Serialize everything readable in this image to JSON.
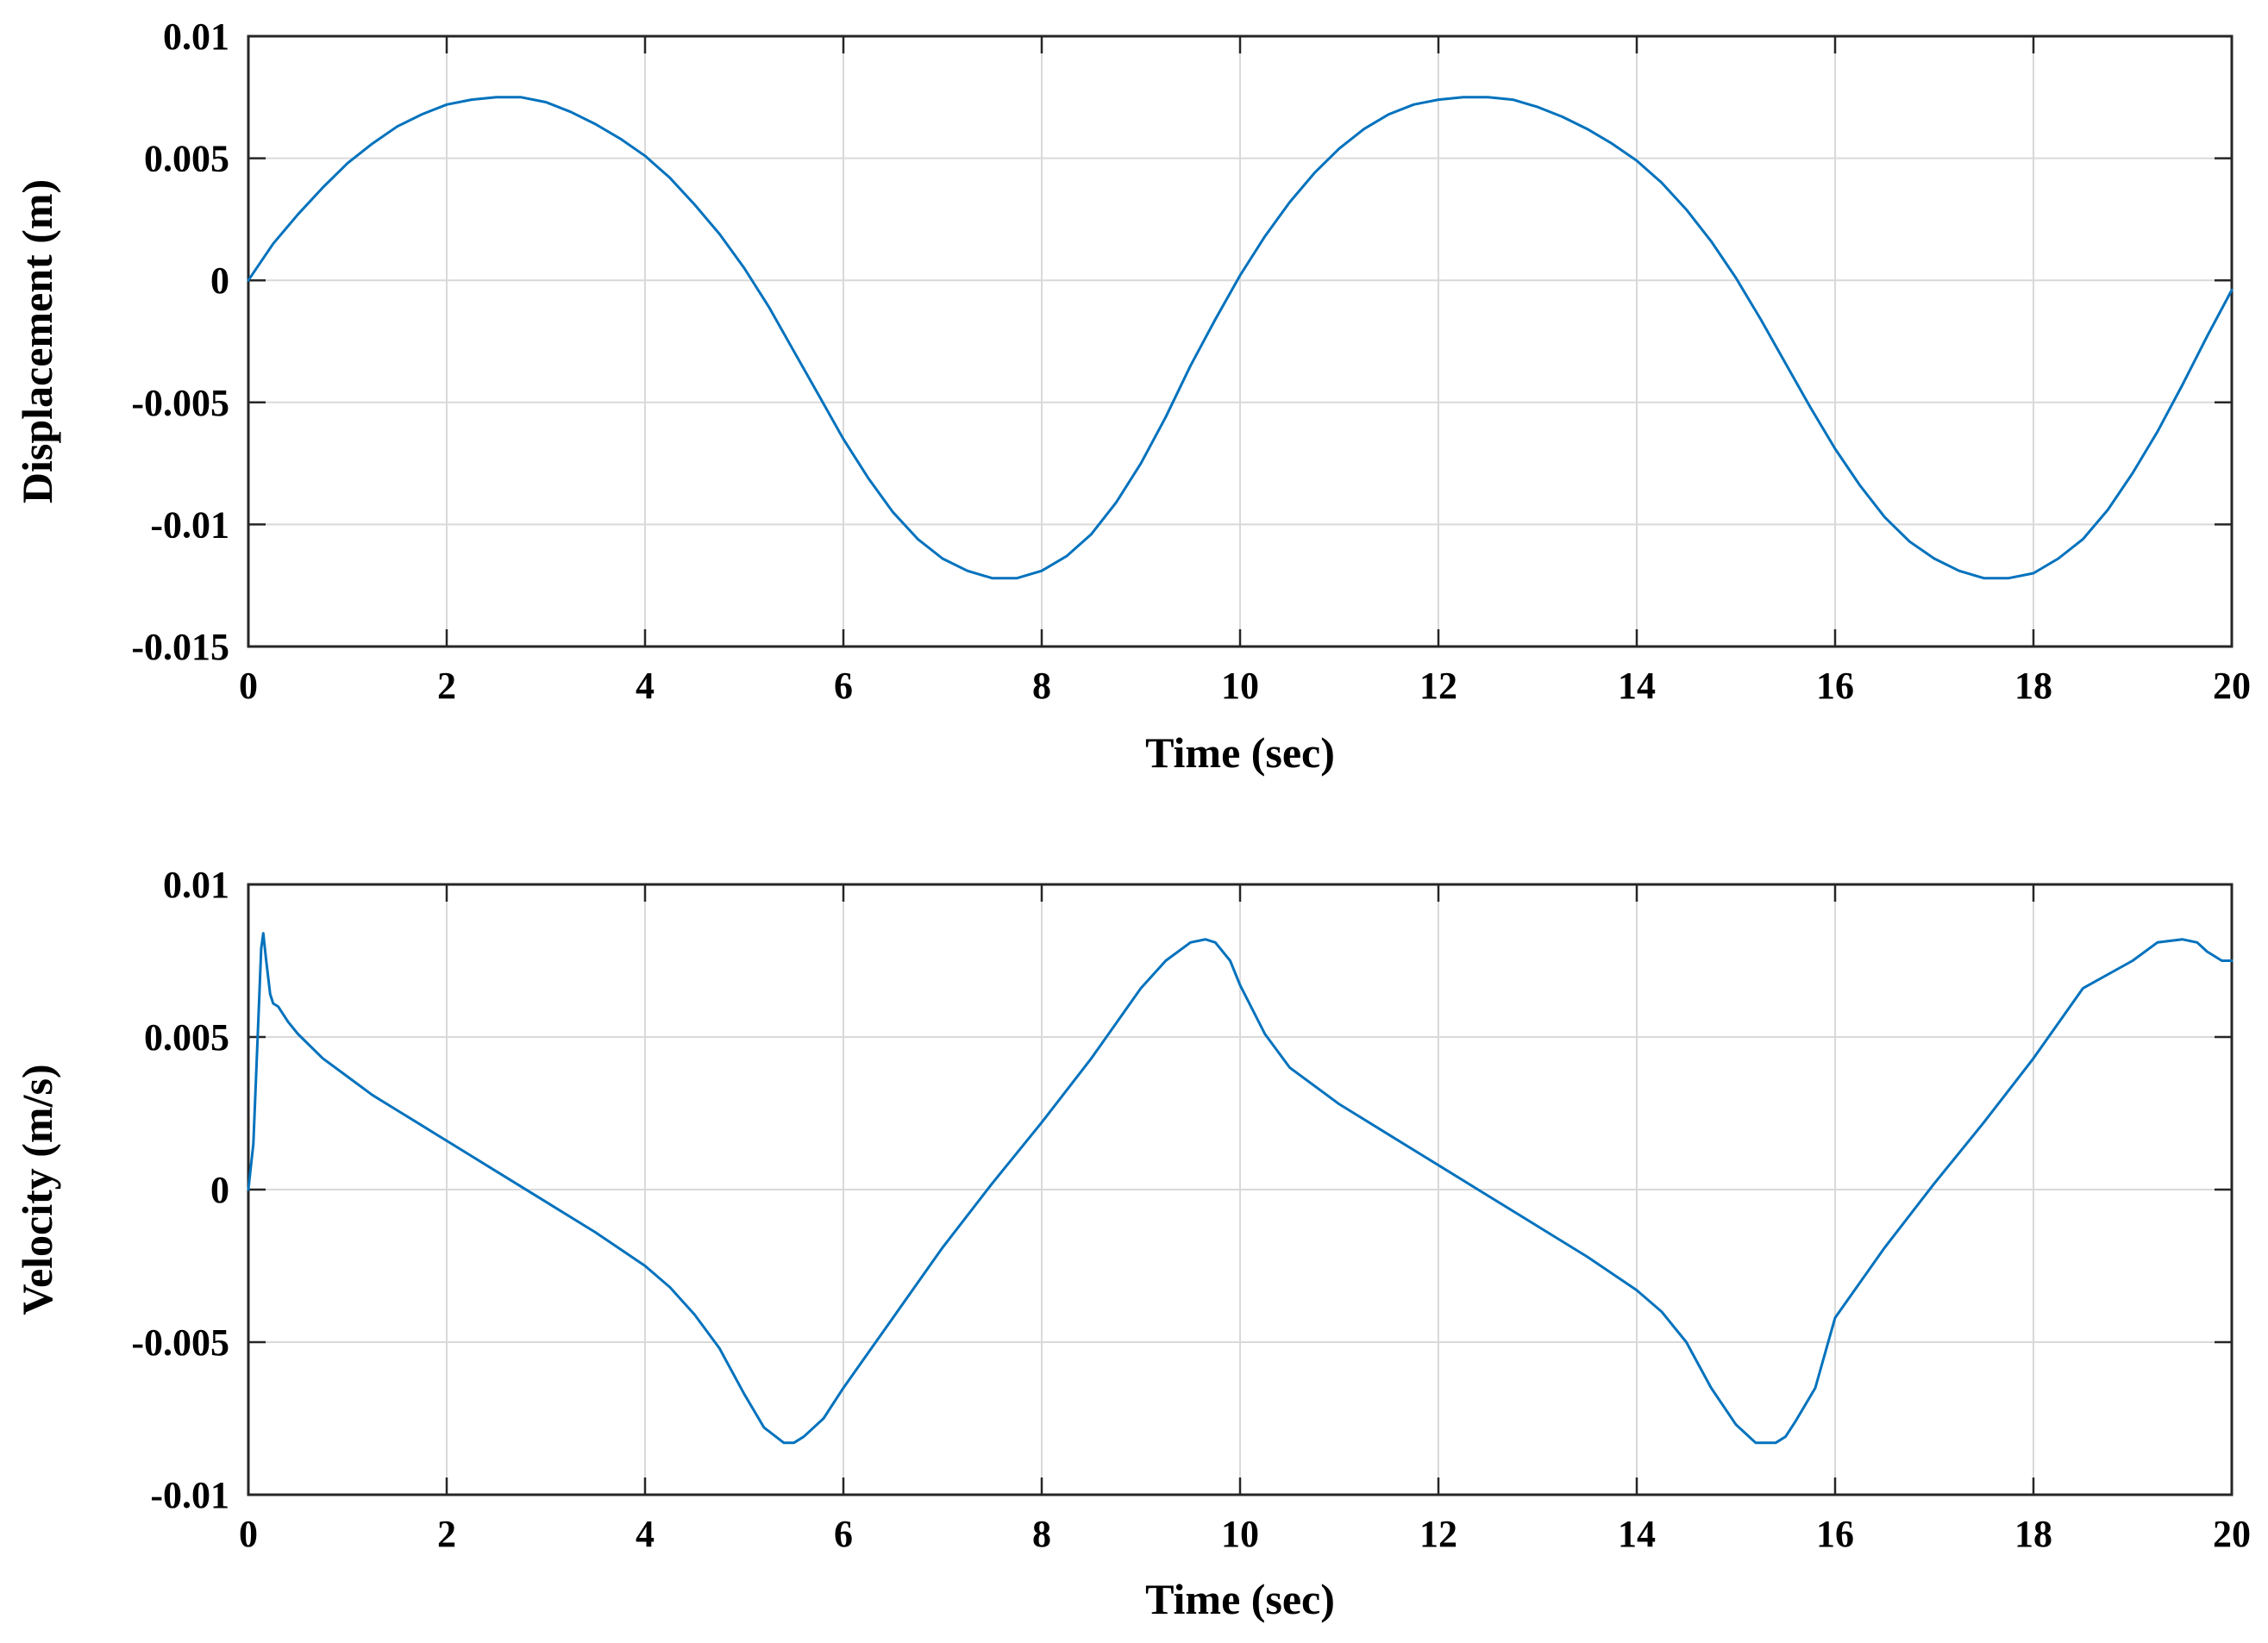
{
  "chart_data": [
    {
      "type": "line",
      "xlabel": "Time (sec)",
      "ylabel": "Displacement (m)",
      "xlim": [
        0,
        20
      ],
      "ylim": [
        -0.015,
        0.01
      ],
      "xticks": [
        "0",
        "2",
        "4",
        "6",
        "8",
        "10",
        "12",
        "14",
        "16",
        "18",
        "20"
      ],
      "yticks": [
        "0.01",
        "0.005",
        "0",
        "-0.005",
        "-0.01",
        "-0.015"
      ],
      "grid": true,
      "series": [
        {
          "color": "#0072BD",
          "x": [
            0,
            0.1,
            0.25,
            0.5,
            0.75,
            1,
            1.25,
            1.5,
            1.75,
            2,
            2.25,
            2.5,
            2.75,
            3,
            3.25,
            3.5,
            3.75,
            4,
            4.25,
            4.5,
            4.75,
            5,
            5.25,
            5.5,
            5.75,
            6,
            6.25,
            6.5,
            6.75,
            7,
            7.25,
            7.5,
            7.75,
            8,
            8.25,
            8.5,
            8.75,
            9,
            9.25,
            9.5,
            9.75,
            10,
            10.25,
            10.5,
            10.75,
            11,
            11.25,
            11.5,
            11.75,
            12,
            12.25,
            12.5,
            12.75,
            13,
            13.25,
            13.5,
            13.75,
            14,
            14.25,
            14.5,
            14.75,
            15,
            15.25,
            15.5,
            15.75,
            16,
            16.25,
            16.5,
            16.75,
            17,
            17.25,
            17.5,
            17.75,
            18,
            18.25,
            18.5,
            18.75,
            19,
            19.25,
            19.5,
            19.75,
            20
          ],
          "y": [
            0,
            0.0006,
            0.0015,
            0.0027,
            0.0038,
            0.0048,
            0.0056,
            0.0063,
            0.0068,
            0.0072,
            0.0074,
            0.0075,
            0.0075,
            0.0073,
            0.0069,
            0.0064,
            0.0058,
            0.0051,
            0.0042,
            0.0031,
            0.0019,
            0.0005,
            -0.0011,
            -0.0029,
            -0.0047,
            -0.0065,
            -0.0081,
            -0.0095,
            -0.0106,
            -0.0114,
            -0.0119,
            -0.0122,
            -0.0122,
            -0.0119,
            -0.0113,
            -0.0104,
            -0.0091,
            -0.0075,
            -0.0056,
            -0.0035,
            -0.0016,
            0.0002,
            0.0018,
            0.0032,
            0.0044,
            0.0054,
            0.0062,
            0.0068,
            0.0072,
            0.0074,
            0.0075,
            0.0075,
            0.0074,
            0.0071,
            0.0067,
            0.0062,
            0.0056,
            0.0049,
            0.004,
            0.0029,
            0.0016,
            0.0001,
            -0.0016,
            -0.0034,
            -0.0052,
            -0.0069,
            -0.0084,
            -0.0097,
            -0.0107,
            -0.0114,
            -0.0119,
            -0.0122,
            -0.0122,
            -0.012,
            -0.0114,
            -0.0106,
            -0.0094,
            -0.0079,
            -0.0062,
            -0.0043,
            -0.0023,
            -0.0004
          ]
        }
      ]
    },
    {
      "type": "line",
      "xlabel": "Time (sec)",
      "ylabel": "Velocity (m/s)",
      "xlim": [
        0,
        20
      ],
      "ylim": [
        -0.01,
        0.01
      ],
      "xticks": [
        "0",
        "2",
        "4",
        "6",
        "8",
        "10",
        "12",
        "14",
        "16",
        "18",
        "20"
      ],
      "yticks": [
        "0.01",
        "0.005",
        "0",
        "-0.005",
        "-0.01"
      ],
      "grid": true,
      "series": [
        {
          "color": "#0072BD",
          "x": [
            0,
            0.05,
            0.1,
            0.13,
            0.15,
            0.18,
            0.22,
            0.25,
            0.3,
            0.4,
            0.5,
            0.75,
            1,
            1.25,
            1.5,
            1.75,
            2,
            2.5,
            3,
            3.5,
            4,
            4.25,
            4.5,
            4.75,
            5,
            5.2,
            5.4,
            5.5,
            5.6,
            5.8,
            6,
            6.5,
            7,
            7.5,
            8,
            8.5,
            9,
            9.25,
            9.5,
            9.65,
            9.75,
            9.9,
            10,
            10.25,
            10.5,
            11,
            11.5,
            12,
            12.5,
            13,
            13.5,
            14,
            14.25,
            14.5,
            14.75,
            15,
            15.2,
            15.4,
            15.5,
            15.6,
            15.8,
            16,
            16.5,
            17,
            17.5,
            18,
            18.5,
            19,
            19.25,
            19.5,
            19.65,
            19.75,
            19.9,
            20
          ],
          "y": [
            0,
            0.0015,
            0.0055,
            0.0079,
            0.0084,
            0.0075,
            0.0064,
            0.0061,
            0.006,
            0.0055,
            0.0051,
            0.0043,
            0.0037,
            0.0031,
            0.0026,
            0.0021,
            0.0016,
            0.0006,
            -0.0004,
            -0.0014,
            -0.0025,
            -0.0032,
            -0.0041,
            -0.0052,
            -0.0067,
            -0.0078,
            -0.0083,
            -0.0083,
            -0.0081,
            -0.0075,
            -0.0065,
            -0.0042,
            -0.0019,
            0.0002,
            0.0022,
            0.0043,
            0.0066,
            0.0075,
            0.0081,
            0.0082,
            0.0081,
            0.0075,
            0.0067,
            0.0051,
            0.004,
            0.0028,
            0.0018,
            0.0008,
            -0.0002,
            -0.0012,
            -0.0022,
            -0.0033,
            -0.004,
            -0.005,
            -0.0065,
            -0.0077,
            -0.0083,
            -0.0083,
            -0.0081,
            -0.0076,
            -0.0065,
            -0.0042,
            -0.0019,
            0.0002,
            0.0022,
            0.0043,
            0.0066,
            0.0075,
            0.0081,
            0.0082,
            0.0081,
            0.0078,
            0.0075,
            0.0075
          ]
        }
      ]
    }
  ]
}
